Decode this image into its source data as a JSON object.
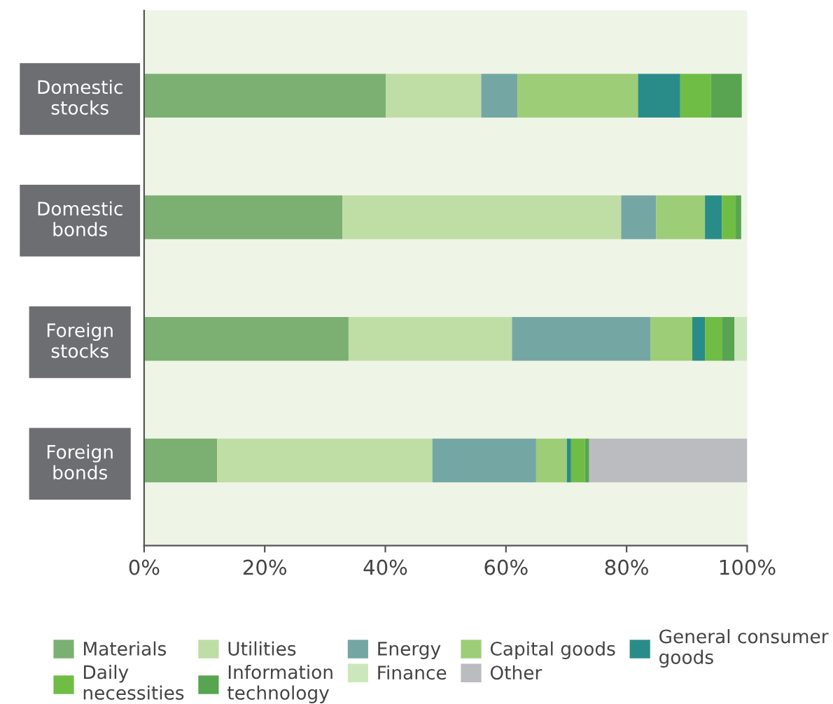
{
  "chart_data": {
    "type": "bar",
    "orientation": "horizontal",
    "stacked": true,
    "categories": [
      "Domestic\nstocks",
      "Domestic\nbonds",
      "Foreign\nstocks",
      "Foreign\nbonds"
    ],
    "series": [
      {
        "name": "Materials",
        "color": "#7bb072",
        "values": [
          40.1,
          32.9,
          33.9,
          12.1
        ]
      },
      {
        "name": "Utilities",
        "color": "#bfdea6",
        "values": [
          15.8,
          46.2,
          27.1,
          35.7
        ]
      },
      {
        "name": "Energy",
        "color": "#74a7a4",
        "values": [
          6.0,
          5.8,
          23.0,
          17.2
        ]
      },
      {
        "name": "Capital goods",
        "color": "#9dcd76",
        "values": [
          20.0,
          8.1,
          6.9,
          5.1
        ]
      },
      {
        "name": "General consumer\ngoods",
        "color": "#2a8c88",
        "values": [
          7.0,
          2.8,
          2.1,
          0.7
        ]
      },
      {
        "name": "Daily\nnecessities",
        "color": "#6fbd45",
        "values": [
          5.1,
          2.3,
          2.8,
          2.3
        ]
      },
      {
        "name": "Information\ntechnology",
        "color": "#58a450",
        "values": [
          5.1,
          0.9,
          2.1,
          0.7
        ]
      },
      {
        "name": "Finance",
        "color": "#cde7bc",
        "values": [
          0,
          0,
          2.1,
          0
        ]
      },
      {
        "name": "Other",
        "color": "#bbbcc0",
        "values": [
          0,
          0,
          0,
          26.2
        ]
      }
    ],
    "xlim": [
      0,
      100
    ],
    "xticks": [
      {
        "value": 0,
        "label": "0%"
      },
      {
        "value": 20,
        "label": "20%"
      },
      {
        "value": 40,
        "label": "40%"
      },
      {
        "value": 60,
        "label": "60%"
      },
      {
        "value": 80,
        "label": "80%"
      },
      {
        "value": 100,
        "label": "100%"
      }
    ],
    "grid": false,
    "legend": "bottom"
  }
}
